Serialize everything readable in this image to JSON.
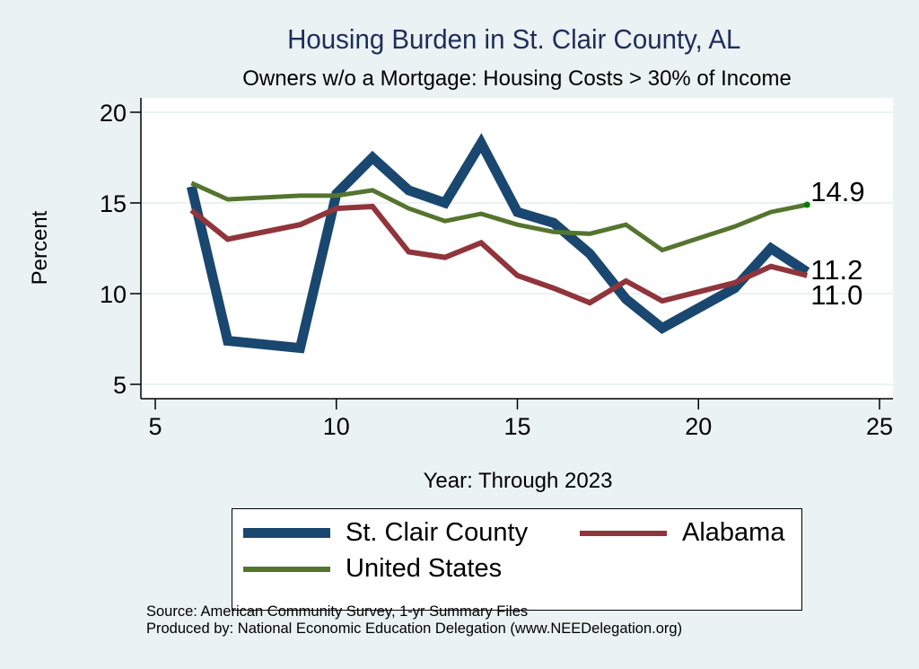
{
  "chart_data": {
    "type": "line",
    "title": "Housing Burden in St. Clair County, AL",
    "subtitle": "Owners w/o a Mortgage: Housing Costs > 30% of Income",
    "xlabel": "Year: Through 2023",
    "ylabel": "Percent",
    "xlim": [
      4.5,
      25.5
    ],
    "ylim": [
      4.2,
      20.8
    ],
    "xticks": [
      5,
      10,
      15,
      20,
      25
    ],
    "yticks": [
      5,
      10,
      15,
      20
    ],
    "grid": "horizontal",
    "legend_position": "bottom",
    "series": [
      {
        "name": "St. Clair County",
        "color": "#1a476f",
        "x": [
          6,
          7,
          9,
          10,
          11,
          12,
          13,
          14,
          15,
          16,
          17,
          18,
          19,
          21,
          22,
          23
        ],
        "values": [
          15.9,
          7.4,
          7.0,
          15.5,
          17.5,
          15.7,
          15.0,
          18.3,
          14.5,
          13.9,
          12.2,
          9.7,
          8.1,
          10.3,
          12.5,
          11.2
        ],
        "end_label": "11.2"
      },
      {
        "name": "Alabama",
        "color": "#90353b",
        "x": [
          6,
          7,
          9,
          10,
          11,
          12,
          13,
          14,
          15,
          16,
          17,
          18,
          19,
          21,
          22,
          23
        ],
        "values": [
          14.6,
          13.0,
          13.8,
          14.7,
          14.8,
          12.3,
          12.0,
          12.8,
          11.0,
          10.3,
          9.5,
          10.7,
          9.6,
          10.6,
          11.5,
          11.0
        ],
        "end_label": "11.0"
      },
      {
        "name": "United States",
        "color": "#55752f",
        "x": [
          6,
          7,
          9,
          10,
          11,
          12,
          13,
          14,
          15,
          16,
          17,
          18,
          19,
          21,
          22,
          23
        ],
        "values": [
          16.1,
          15.2,
          15.4,
          15.4,
          15.7,
          14.7,
          14.0,
          14.4,
          13.8,
          13.4,
          13.3,
          13.8,
          12.4,
          13.7,
          14.5,
          14.9
        ],
        "end_label": "14.9"
      }
    ]
  },
  "legend": {
    "items": [
      {
        "label": "St. Clair County",
        "color": "#1a476f"
      },
      {
        "label": "Alabama",
        "color": "#90353b"
      },
      {
        "label": "United States",
        "color": "#55752f"
      }
    ]
  },
  "footer": {
    "source": "Source: American Community Survey, 1-yr Summary Files",
    "produced": "Produced by: National Economic Education Delegation (www.NEEDelegation.org)"
  },
  "colors": {
    "background": "#eaf2f3",
    "plot_background": "#ffffff",
    "title": "#1e2d5a",
    "grid": "#eaf2f3",
    "end_marker": "#008000"
  }
}
